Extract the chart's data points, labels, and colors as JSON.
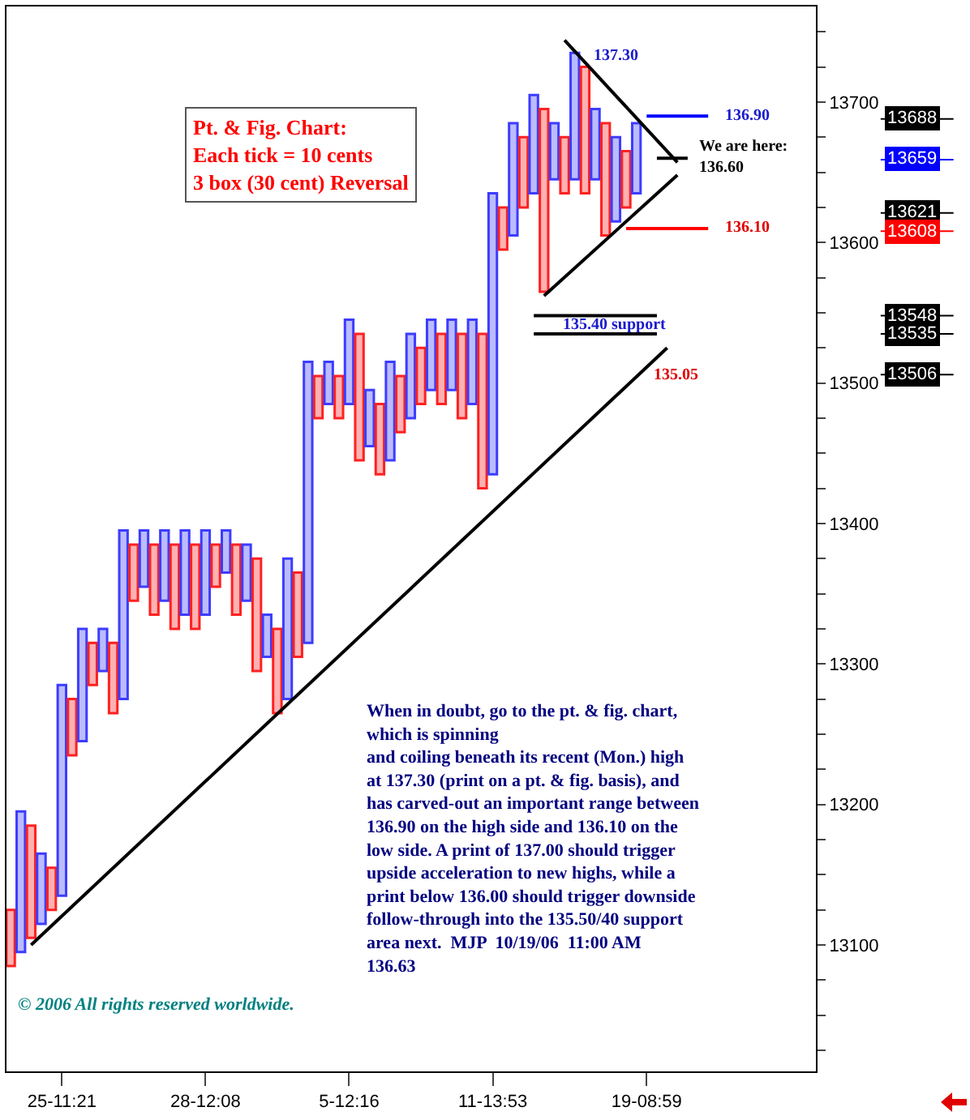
{
  "chart_data": {
    "type": "bar",
    "title": "Pt. & Fig. Chart:",
    "subtitle": "Each tick = 10 cents\n3 box (30 cent) Reversal",
    "categories": [
      null,
      null,
      null,
      null,
      null,
      "25-11:21",
      null,
      null,
      null,
      null,
      null,
      null,
      null,
      null,
      null,
      null,
      null,
      null,
      null,
      "28-12:08",
      null,
      null,
      null,
      null,
      null,
      null,
      null,
      null,
      null,
      null,
      null,
      null,
      null,
      "5-12:16",
      null,
      null,
      null,
      null,
      null,
      null,
      null,
      null,
      null,
      null,
      null,
      null,
      null,
      "11-13:53",
      null,
      null,
      null,
      null,
      null,
      null,
      null,
      null,
      null,
      null,
      null,
      null,
      null,
      null,
      "19-08:59",
      null,
      null,
      null,
      null,
      null,
      null,
      null,
      null,
      null,
      null,
      null,
      null,
      null,
      null,
      null,
      null
    ],
    "ylim": [
      13010,
      13768
    ],
    "yticks": [
      {
        "value": 13025,
        "label": null
      },
      {
        "value": 13050,
        "label": null
      },
      {
        "value": 13075,
        "label": null
      },
      13100,
      {
        "value": 13125,
        "label": null
      },
      {
        "value": 13150,
        "label": null
      },
      {
        "value": 13175,
        "label": null
      },
      13200,
      {
        "value": 13225,
        "label": null
      },
      {
        "value": 13250,
        "label": null
      },
      {
        "value": 13275,
        "label": null
      },
      13300,
      {
        "value": 13325,
        "label": null
      },
      {
        "value": 13350,
        "label": null
      },
      {
        "value": 13375,
        "label": null
      },
      13400,
      {
        "value": 13425,
        "label": null
      },
      {
        "value": 13450,
        "label": null
      },
      {
        "value": 13475,
        "label": null
      },
      13500,
      {
        "value": 13525,
        "label": null
      },
      {
        "value": 13550,
        "label": null
      },
      {
        "value": 13575,
        "label": null
      },
      13600,
      {
        "value": 13625,
        "label": null
      },
      {
        "value": 13650,
        "label": null
      },
      {
        "value": 13675,
        "label": null
      },
      13700,
      {
        "value": 13725,
        "label": null
      },
      {
        "value": 13750,
        "label": null
      }
    ],
    "series": [
      {
        "base": [
          13085,
          13095,
          13105,
          13115,
          13125,
          13135,
          13235,
          13245,
          13285,
          13295,
          13265,
          13275,
          13345,
          13355,
          13335,
          13345,
          13325,
          13335,
          13325,
          13335,
          13355,
          13365,
          13335,
          13345,
          13295,
          13305,
          13265,
          13275,
          13305,
          13315,
          13475,
          13485,
          13475,
          13485,
          13445,
          13455,
          13435,
          13445,
          13465,
          13475,
          13485,
          13495,
          13485,
          13495,
          13475,
          13485,
          13425,
          13435,
          13595,
          13605,
          13625,
          13635,
          13565,
          13645,
          13635,
          13645,
          13635,
          13645,
          13605,
          13615,
          13625,
          13635,
          null,
          null,
          null,
          null,
          null,
          null,
          null,
          null,
          null,
          null,
          null,
          null,
          null,
          null,
          null,
          null,
          null
        ],
        "values": [
          40,
          100,
          80,
          50,
          30,
          150,
          40,
          80,
          30,
          30,
          50,
          120,
          40,
          40,
          50,
          50,
          60,
          60,
          60,
          60,
          30,
          30,
          50,
          40,
          80,
          30,
          60,
          100,
          60,
          200,
          30,
          30,
          30,
          60,
          90,
          40,
          50,
          70,
          40,
          60,
          40,
          50,
          50,
          50,
          60,
          60,
          110,
          200,
          30,
          80,
          50,
          70,
          130,
          40,
          40,
          90,
          90,
          50,
          80,
          60,
          40,
          50,
          null,
          null,
          null,
          null,
          null,
          null,
          null,
          null,
          null,
          null,
          null,
          null,
          null,
          null,
          null,
          null,
          null
        ],
        "colors": [
          "#ff2020",
          "#3c3cff",
          "#ff2020",
          "#3c3cff",
          "#ff2020",
          "#3c3cff",
          "#ff2020",
          "#3c3cff",
          "#ff2020",
          "#3c3cff",
          "#ff2020",
          "#3c3cff",
          "#ff2020",
          "#3c3cff",
          "#ff2020",
          "#3c3cff",
          "#ff2020",
          "#3c3cff",
          "#ff2020",
          "#3c3cff",
          "#ff2020",
          "#3c3cff",
          "#ff2020",
          "#3c3cff",
          "#ff2020",
          "#3c3cff",
          "#ff2020",
          "#3c3cff",
          "#ff2020",
          "#3c3cff",
          "#ff2020",
          "#3c3cff",
          "#ff2020",
          "#3c3cff",
          "#ff2020",
          "#3c3cff",
          "#ff2020",
          "#3c3cff",
          "#ff2020",
          "#3c3cff",
          "#ff2020",
          "#3c3cff",
          "#ff2020",
          "#3c3cff",
          "#ff2020",
          "#3c3cff",
          "#ff2020",
          "#3c3cff",
          "#ff2020",
          "#3c3cff",
          "#ff2020",
          "#3c3cff",
          "#ff2020",
          "#3c3cff",
          "#ff2020",
          "#3c3cff",
          "#ff2020",
          "#3c3cff",
          "#ff2020",
          "#3c3cff",
          "#ff2020",
          "#3c3cff",
          null,
          null,
          null,
          null,
          null,
          null,
          null,
          null,
          null,
          null,
          null,
          null,
          null,
          null,
          null,
          null,
          null
        ]
      },
      {
        "type": "line",
        "color": "#000000",
        "values": [
          null,
          null,
          13100,
          null,
          null,
          null,
          null,
          null,
          null,
          null,
          null,
          null,
          null,
          null,
          null,
          null,
          null,
          null,
          null,
          null,
          null,
          null,
          null,
          null,
          null,
          null,
          null,
          null,
          null,
          null,
          null,
          null,
          null,
          null,
          null,
          null,
          null,
          null,
          null,
          null,
          null,
          null,
          null,
          null,
          null,
          null,
          null,
          null,
          null,
          null,
          null,
          null,
          null,
          null,
          null,
          null,
          null,
          null,
          null,
          null,
          null,
          null,
          null,
          null,
          13525,
          null,
          null,
          null,
          null,
          null,
          null,
          null,
          null,
          null,
          null,
          null,
          null,
          null,
          null
        ]
      },
      {
        "type": "line",
        "color": "#000000",
        "values": [
          null,
          null,
          null,
          null,
          null,
          null,
          null,
          null,
          null,
          null,
          null,
          null,
          null,
          null,
          null,
          null,
          null,
          null,
          null,
          null,
          null,
          null,
          null,
          null,
          null,
          null,
          null,
          null,
          null,
          null,
          null,
          null,
          null,
          null,
          null,
          null,
          null,
          null,
          null,
          null,
          null,
          null,
          null,
          null,
          null,
          null,
          null,
          null,
          null,
          null,
          null,
          null,
          null,
          null,
          13744,
          null,
          null,
          null,
          null,
          null,
          null,
          null,
          null,
          null,
          null,
          13657,
          null,
          null,
          null,
          null,
          null,
          null,
          null,
          null,
          null,
          null,
          null,
          null,
          null
        ]
      },
      {
        "type": "line",
        "color": "#000000",
        "values": [
          null,
          null,
          null,
          null,
          null,
          null,
          null,
          null,
          null,
          null,
          null,
          null,
          null,
          null,
          null,
          null,
          null,
          null,
          null,
          null,
          null,
          null,
          null,
          null,
          null,
          null,
          null,
          null,
          null,
          null,
          null,
          null,
          null,
          null,
          null,
          null,
          null,
          null,
          null,
          null,
          null,
          null,
          null,
          null,
          null,
          null,
          null,
          null,
          null,
          null,
          null,
          null,
          13562,
          null,
          null,
          null,
          null,
          null,
          null,
          null,
          null,
          null,
          null,
          null,
          null,
          13648,
          null,
          null,
          null,
          null,
          null,
          null,
          null,
          null,
          null,
          null,
          null,
          null,
          null
        ]
      },
      {
        "type": "line",
        "color": "#0000ff",
        "values": [
          null,
          null,
          null,
          null,
          null,
          null,
          null,
          null,
          null,
          null,
          null,
          null,
          null,
          null,
          null,
          null,
          null,
          null,
          null,
          null,
          null,
          null,
          null,
          null,
          null,
          null,
          null,
          null,
          null,
          null,
          null,
          null,
          null,
          null,
          null,
          null,
          null,
          null,
          null,
          null,
          null,
          null,
          null,
          null,
          null,
          null,
          null,
          null,
          null,
          null,
          null,
          null,
          null,
          null,
          null,
          null,
          null,
          null,
          null,
          null,
          null,
          null,
          13690,
          null,
          null,
          null,
          null,
          null,
          13690,
          null,
          null,
          null,
          null,
          null,
          null,
          null,
          null,
          null,
          null
        ]
      },
      {
        "type": "line",
        "color": "#000000",
        "values": [
          null,
          null,
          null,
          null,
          null,
          null,
          null,
          null,
          null,
          null,
          null,
          null,
          null,
          null,
          null,
          null,
          null,
          null,
          null,
          null,
          null,
          null,
          null,
          null,
          null,
          null,
          null,
          null,
          null,
          null,
          null,
          null,
          null,
          null,
          null,
          null,
          null,
          null,
          null,
          null,
          null,
          null,
          null,
          null,
          null,
          null,
          null,
          null,
          null,
          null,
          null,
          null,
          null,
          null,
          null,
          null,
          null,
          null,
          null,
          null,
          null,
          null,
          null,
          13660,
          null,
          null,
          13660,
          null,
          null,
          null,
          null,
          null,
          null,
          null,
          null,
          null,
          null,
          null,
          null
        ]
      },
      {
        "type": "line",
        "color": "#ff0000",
        "values": [
          null,
          null,
          null,
          null,
          null,
          null,
          null,
          null,
          null,
          null,
          null,
          null,
          null,
          null,
          null,
          null,
          null,
          null,
          null,
          null,
          null,
          null,
          null,
          null,
          null,
          null,
          null,
          null,
          null,
          null,
          null,
          null,
          null,
          null,
          null,
          null,
          null,
          null,
          null,
          null,
          null,
          null,
          null,
          null,
          null,
          null,
          null,
          null,
          null,
          null,
          null,
          null,
          null,
          null,
          null,
          null,
          null,
          null,
          null,
          null,
          13610,
          null,
          null,
          null,
          null,
          null,
          null,
          null,
          13610,
          null,
          null,
          null,
          null,
          null,
          null,
          null,
          null,
          null,
          null
        ]
      },
      {
        "type": "line",
        "color": "#000000",
        "values": [
          null,
          null,
          null,
          null,
          null,
          null,
          null,
          null,
          null,
          null,
          null,
          null,
          null,
          null,
          null,
          null,
          null,
          null,
          null,
          null,
          null,
          null,
          null,
          null,
          null,
          null,
          null,
          null,
          null,
          null,
          null,
          null,
          null,
          null,
          null,
          null,
          null,
          null,
          null,
          null,
          null,
          null,
          null,
          null,
          null,
          null,
          null,
          null,
          null,
          null,
          null,
          13548,
          null,
          null,
          null,
          null,
          null,
          null,
          null,
          null,
          null,
          null,
          null,
          13548,
          null,
          null,
          null,
          null,
          null,
          null,
          null,
          null,
          null,
          null,
          null,
          null,
          null,
          null,
          null
        ]
      },
      {
        "type": "line",
        "color": "#000000",
        "values": [
          null,
          null,
          null,
          null,
          null,
          null,
          null,
          null,
          null,
          null,
          null,
          null,
          null,
          null,
          null,
          null,
          null,
          null,
          null,
          null,
          null,
          null,
          null,
          null,
          null,
          null,
          null,
          null,
          null,
          null,
          null,
          null,
          null,
          null,
          null,
          null,
          null,
          null,
          null,
          null,
          null,
          null,
          null,
          null,
          null,
          null,
          null,
          null,
          null,
          null,
          null,
          13535,
          null,
          null,
          null,
          null,
          null,
          null,
          null,
          null,
          null,
          null,
          null,
          13535,
          null,
          null,
          null,
          null,
          null,
          null,
          null,
          null,
          null,
          null,
          null,
          null,
          null,
          null,
          null
        ]
      }
    ],
    "ref_lines": [
      {
        "axis": "y",
        "value": 13688,
        "label": "13688",
        "color": "#000000"
      },
      {
        "axis": "y",
        "value": 13659,
        "label": "13659",
        "color": "#0000ff"
      },
      {
        "axis": "y",
        "value": 13621,
        "label": "13621",
        "color": "#000000"
      },
      {
        "axis": "y",
        "value": 13608,
        "label": "13608",
        "color": "#ff0000"
      },
      {
        "axis": "y",
        "value": 13548,
        "label": "13548",
        "color": "#000000"
      },
      {
        "axis": "y",
        "value": 13535,
        "label": "13535",
        "color": "#000000"
      },
      {
        "axis": "y",
        "value": 13506,
        "label": "13506",
        "color": "#000000"
      }
    ],
    "annotations": [
      "137.30",
      "136.90",
      "We are here:\n136.60",
      "136.10",
      "135.40 support",
      "135.05",
      "When in doubt, go to the pt. & fig. chart,\nwhich is spinning\nand coiling beneath its recent (Mon.) high\nat 137.30 (print on a pt. & fig. basis), and\nhas carved-out an important range between\n136.90 on the high side and 136.10 on the\nlow side. A print of 137.00 should trigger\nupside acceleration to new highs, while a\nprint below 136.00 should trigger downside\nfollow-through into the 135.50/40 support\narea next.  MJP  10/19/06  11:00 AM\n136.63",
      "© 2006 All rights reserved worldwide."
    ]
  }
}
